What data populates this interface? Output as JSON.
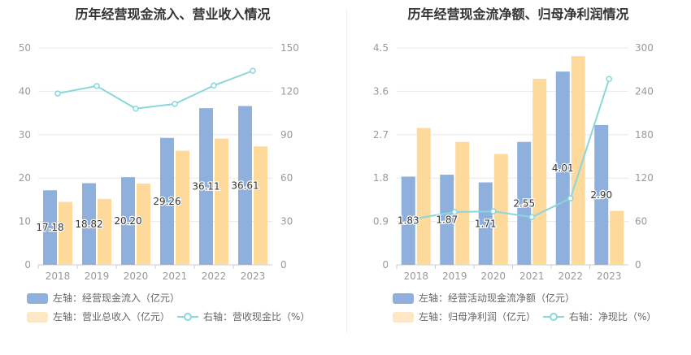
{
  "colors": {
    "inflow": "#8fb0dd",
    "secondary": "#fdd99b",
    "ratio": "#88d7dd",
    "grid": "#e8e8e8",
    "axis_text": "#999999",
    "label_text": "#333333"
  },
  "chart_data": [
    {
      "type": "bar",
      "title": "历年经营现金流入、营业收入情况",
      "categories": [
        "2018",
        "2019",
        "2020",
        "2021",
        "2022",
        "2023"
      ],
      "left_axis": {
        "ticks": [
          "0",
          "10",
          "20",
          "30",
          "40",
          "50"
        ],
        "ylim": [
          0,
          50
        ]
      },
      "right_axis": {
        "ticks": [
          "0",
          "30",
          "60",
          "90",
          "120",
          "150"
        ],
        "ylim": [
          0,
          150
        ]
      },
      "grid": true,
      "legend_position": "bottom",
      "series": [
        {
          "name": "左轴：经营现金流入（亿元）",
          "axis": "left",
          "type": "bar",
          "values": [
            17.18,
            18.82,
            20.2,
            29.26,
            36.11,
            36.61
          ],
          "labels": [
            "17.18",
            "18.82",
            "20.20",
            "29.26",
            "36.11",
            "36.61"
          ]
        },
        {
          "name": "左轴：营业总收入（亿元）",
          "axis": "left",
          "type": "bar",
          "values": [
            14.5,
            15.2,
            18.7,
            26.3,
            29.1,
            27.3
          ]
        },
        {
          "name": "右轴：营收现金比（%）",
          "axis": "right",
          "type": "line",
          "values": [
            118.5,
            123.7,
            108,
            111.3,
            124,
            134.2
          ]
        }
      ]
    },
    {
      "type": "bar",
      "title": "历年经营现金流净额、归母净利润情况",
      "categories": [
        "2018",
        "2019",
        "2020",
        "2021",
        "2022",
        "2023"
      ],
      "left_axis": {
        "ticks": [
          "0",
          "0.9",
          "1.8",
          "2.7",
          "3.6",
          "4.5"
        ],
        "ylim": [
          0,
          4.5
        ]
      },
      "right_axis": {
        "ticks": [
          "0",
          "60",
          "120",
          "180",
          "240",
          "300"
        ],
        "ylim": [
          0,
          300
        ]
      },
      "grid": true,
      "legend_position": "bottom",
      "series": [
        {
          "name": "左轴：经营活动现金流净额（亿元）",
          "axis": "left",
          "type": "bar",
          "values": [
            1.83,
            1.87,
            1.71,
            2.55,
            4.01,
            2.9
          ],
          "labels": [
            "1.83",
            "1.87",
            "1.71",
            "2.55",
            "4.01",
            "2.90"
          ]
        },
        {
          "name": "左轴：归母净利润（亿元）",
          "axis": "left",
          "type": "bar",
          "values": [
            2.84,
            2.55,
            2.3,
            3.86,
            4.33,
            1.12
          ]
        },
        {
          "name": "右轴：净现比（%）",
          "axis": "right",
          "type": "line",
          "values": [
            64,
            73,
            74,
            66,
            92,
            257
          ]
        }
      ]
    }
  ]
}
